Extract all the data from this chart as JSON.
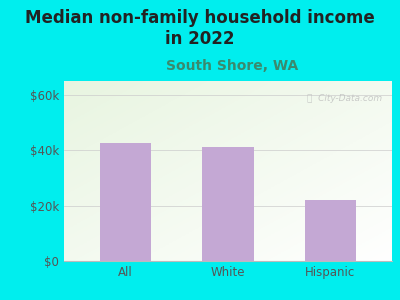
{
  "title": "Median non-family household income\nin 2022",
  "subtitle": "South Shore, WA",
  "categories": [
    "All",
    "White",
    "Hispanic"
  ],
  "values": [
    42500,
    41000,
    22000
  ],
  "bar_color": "#C4A8D4",
  "background_color": "#00EEEE",
  "title_color": "#222222",
  "subtitle_color": "#3A8A6E",
  "axis_label_color": "#555555",
  "ytick_labels": [
    "$0",
    "$20k",
    "$40k",
    "$60k"
  ],
  "ytick_values": [
    0,
    20000,
    40000,
    60000
  ],
  "ylim": [
    0,
    65000
  ],
  "watermark": "ⓘ  City-Data.com",
  "title_fontsize": 12,
  "subtitle_fontsize": 10,
  "tick_fontsize": 8.5
}
